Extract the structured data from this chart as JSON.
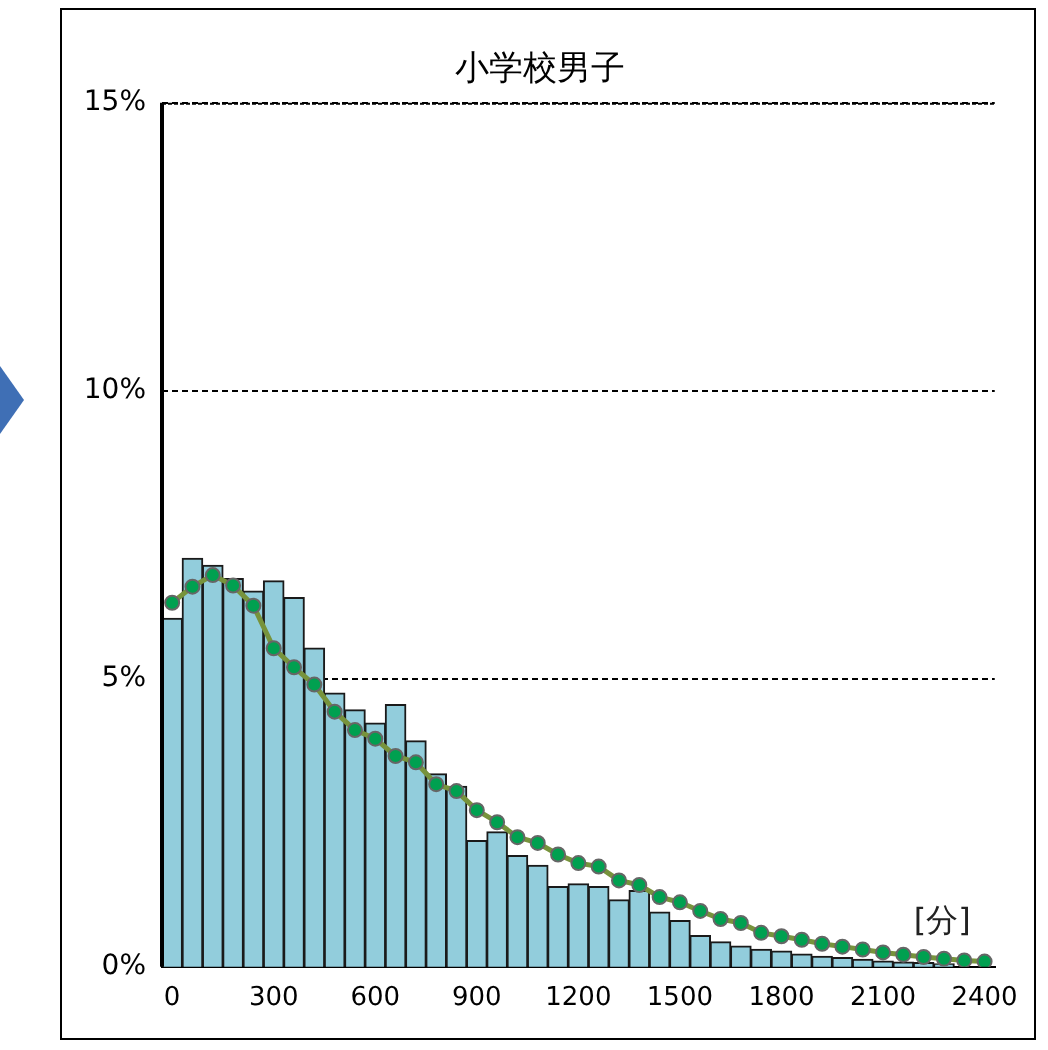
{
  "chart_data": {
    "type": "bar",
    "title": "小学校男子",
    "categories": [
      "0",
      null,
      null,
      null,
      null,
      "300",
      null,
      null,
      null,
      null,
      "600",
      null,
      null,
      null,
      null,
      "900",
      null,
      null,
      null,
      null,
      "1200",
      null,
      null,
      null,
      null,
      "1500",
      null,
      null,
      null,
      null,
      "1800",
      null,
      null,
      null,
      null,
      "2100",
      null,
      null,
      null,
      null,
      "2400"
    ],
    "series": [
      {
        "color": "#92cddc",
        "values": [
          6.05,
          7.09,
          6.97,
          6.74,
          6.52,
          6.7,
          6.41,
          5.53,
          4.75,
          4.46,
          4.23,
          4.55,
          3.92,
          3.35,
          3.13,
          2.19,
          2.34,
          1.93,
          1.76,
          1.39,
          1.44,
          1.39,
          1.16,
          1.32,
          0.95,
          0.8,
          0.54,
          0.43,
          0.36,
          0.3,
          0.27,
          0.22,
          0.18,
          0.16,
          0.13,
          0.1,
          0.08,
          0.07,
          0.05,
          null,
          null
        ]
      },
      {
        "type": "line",
        "color": "#77933c",
        "marker": "circle",
        "values": [
          6.32,
          6.6,
          6.8,
          6.62,
          6.27,
          5.53,
          5.2,
          4.9,
          4.43,
          4.11,
          3.96,
          3.66,
          3.55,
          3.17,
          3.05,
          2.72,
          2.51,
          2.25,
          2.15,
          1.95,
          1.8,
          1.74,
          1.5,
          1.42,
          1.21,
          1.12,
          0.97,
          0.83,
          0.76,
          0.59,
          0.53,
          0.47,
          0.4,
          0.35,
          0.3,
          0.25,
          0.21,
          0.17,
          0.14,
          0.11,
          0.09
        ]
      }
    ],
    "ylim": [
      0,
      15
    ],
    "yticks": [
      {
        "value": 0,
        "label": "0%"
      },
      {
        "value": 5,
        "label": "5%"
      },
      {
        "value": 10,
        "label": "10%"
      },
      {
        "value": 15,
        "label": "15%"
      }
    ],
    "grid": "y",
    "legend": false,
    "annotations": [
      "[分]"
    ]
  }
}
